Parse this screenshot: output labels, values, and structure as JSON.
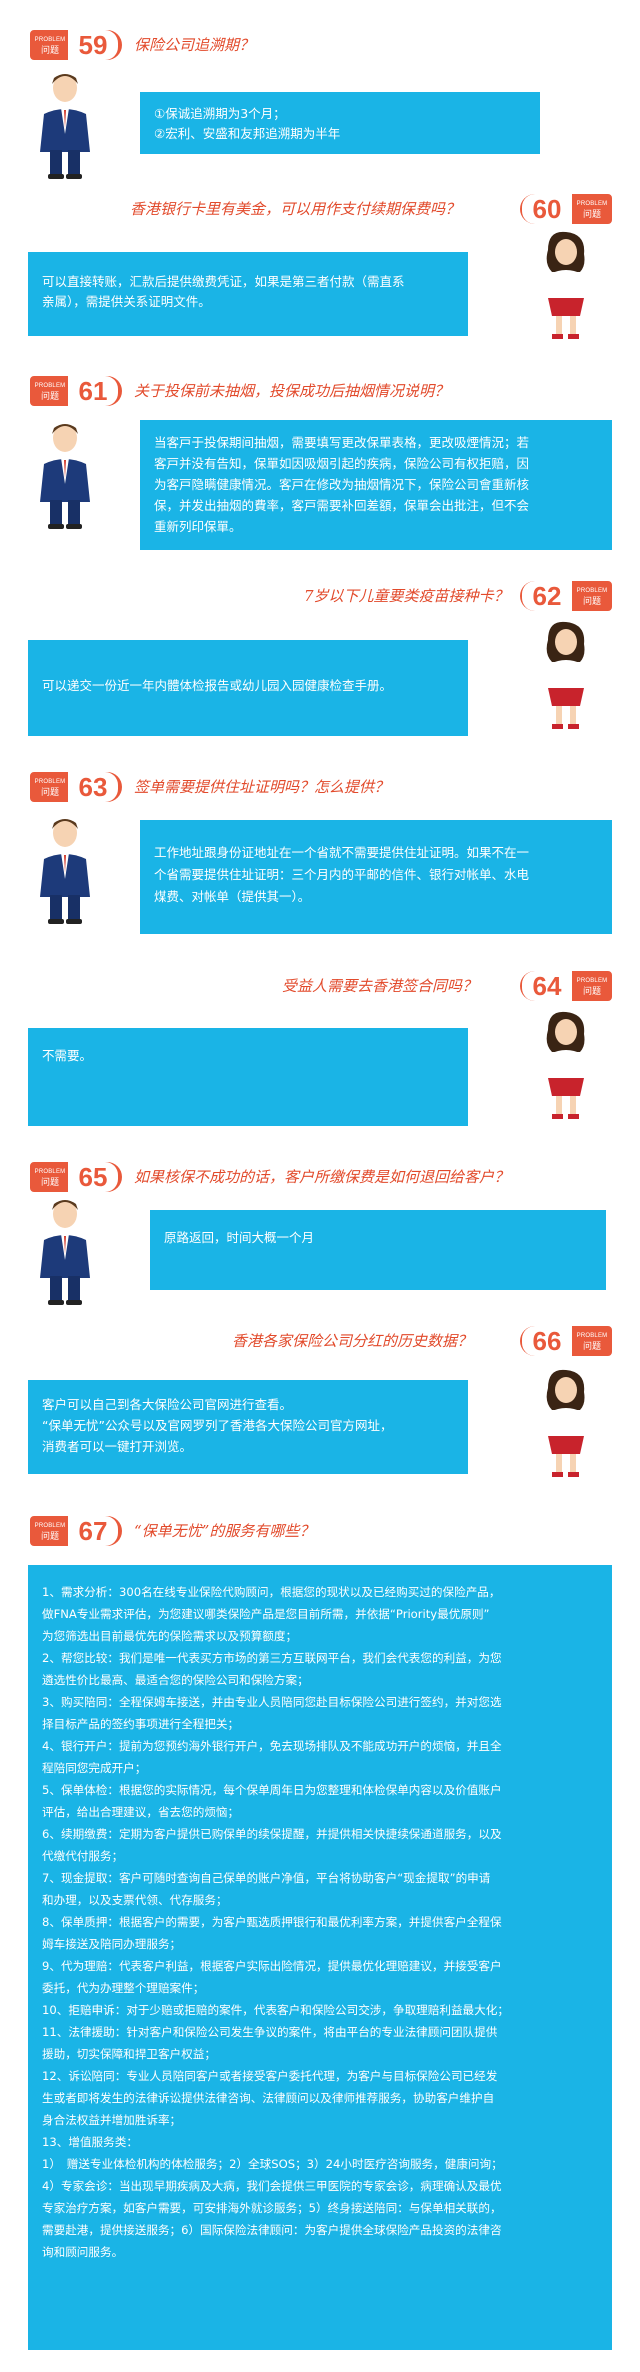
{
  "problem_label": "PROBLEM",
  "question_label": "问题",
  "colors": {
    "accent": "#e9593b",
    "bubble": "#1ab4e6",
    "question_text": "#e24a2b"
  },
  "items": [
    {
      "num": "59",
      "question": "保险公司追溯期？",
      "answer": [
        "①保诚追溯期为3个月；",
        "②宏利、安盛和友邦追溯期为半年"
      ]
    },
    {
      "num": "60",
      "question": "香港银行卡里有美金，可以用作支付续期保费吗？",
      "answer": [
        "可以直接转账，汇款后提供缴费凭证，如果是第三者付款（需直系",
        "亲属），需提供关系证明文件。"
      ]
    },
    {
      "num": "61",
      "question": "关于投保前未抽烟，投保成功后抽烟情况说明？",
      "answer": [
        "当客戸于投保期间抽烟，需要填写更改保單表格，更改吸煙情況；若",
        "客戸并没有告知，保單如因吸烟引起的疾病，保险公司有权拒赔，因",
        "为客戸隐瞒健康情况。客戸在修改为抽烟情况下，保险公司會重新核",
        "保，并发出抽烟的費率，客戸需要补回差額，保單会出批注，但不会",
        "重新列印保單。"
      ]
    },
    {
      "num": "62",
      "question": "7岁以下儿童要类疫苗接种卡？",
      "answer": [
        "可以递交一份近一年内體体检报告或幼儿园入园健康检查手册。"
      ]
    },
    {
      "num": "63",
      "question": "签单需要提供住址证明吗？怎么提供？",
      "answer": [
        "工作地址跟身份证地址在一个省就不需要提供住址证明。如果不在一",
        "个省需要提供住址证明：三个月内的平邮的信件、银行对帐单、水电",
        "煤费、对帐单（提供其一）。"
      ]
    },
    {
      "num": "64",
      "question": "受益人需要去香港签合同吗？",
      "answer": [
        "不需要。"
      ]
    },
    {
      "num": "65",
      "question": "如果核保不成功的话，客户所缴保费是如何退回给客户？",
      "answer": [
        "原路返回，时间大概一个月"
      ]
    },
    {
      "num": "66",
      "question": "香港各家保险公司分红的历史数据？",
      "answer": [
        "客户可以自己到各大保险公司官网进行查看。",
        "“保单无忧”公众号以及官网罗列了香港各大保险公司官方网址，",
        "消费者可以一键打开浏览。"
      ]
    },
    {
      "num": "67",
      "question": "“保单无忧”的服务有哪些？",
      "answer": []
    }
  ],
  "services": [
    "1、需求分析：300名在线专业保险代购顾问，根据您的现状以及已经购买过的保险产品，",
    "做FNA专业需求评估，为您建议哪类保险产品是您目前所需，并依据“Priority最优原则”",
    "为您筛选出目前最优先的保险需求以及预算额度；",
    "2、帮您比较：我们是唯一代表买方市场的第三方互联网平台，我们会代表您的利益，为您",
    "遴选性价比最高、最适合您的保险公司和保险方案；",
    "3、购买陪同：全程保姆车接送，并由专业人员陪同您赴目标保险公司进行签约，并对您选",
    "择目标产品的签约事项进行全程把关；",
    "4、银行开户：提前为您预约海外银行开户，免去现场排队及不能成功开户的烦恼，并且全",
    "程陪同您完成开户；",
    "5、保单体检：根据您的实际情况，每个保单周年日为您整理和体检保单内容以及价值账户",
    "评估，给出合理建议，省去您的烦恼；",
    "6、续期缴费：定期为客户提供已购保单的续保提醒，并提供相关快捷续保通道服务，以及",
    "代缴代付服务；",
    "7、现金提取：客户可随时查询自己保单的账户净值，平台将协助客户“现金提取”的申请",
    "和办理，以及支票代领、代存服务；",
    "8、保单质押：根据客户的需要，为客户甄选质押银行和最优利率方案，并提供客户全程保",
    "姆车接送及陪同办理服务；",
    "9、代为理赔：代表客户利益，根据客户实际出险情况，提供最优化理赔建议，并接受客户",
    "委托，代为办理整个理赔案件；",
    "10、拒赔申诉：对于少赔或拒赔的案件，代表客户和保险公司交涉，争取理赔利益最大化；",
    "11、法律援助：针对客户和保险公司发生争议的案件，将由平台的专业法律顾问团队提供",
    "援助，切实保障和捍卫客户权益；",
    "12、诉讼陪同：专业人员陪同客户或者接受客户委托代理，为客户与目标保险公司已经发",
    "生或者即将发生的法律诉讼提供法律咨询、法律顾问以及律师推荐服务，协助客户维护自",
    "身合法权益并增加胜诉率；",
    "13、增值服务类：",
    "1）　赠送专业体检机构的体检服务；2）全球SOS；3）24小时医疗咨询服务，健康问询；",
    "4）专家会诊：当出现早期疾病及大病，我们会提供三甲医院的专家会诊，病理确认及最优",
    "专家治疗方案，如客户需要，可安排海外就诊服务；5）终身接送陪同：与保单相关联的，",
    "需要赴港，提供接送服务；6）国际保险法律顾问：为客户提供全球保险产品投资的法律咨",
    "询和顾问服务。"
  ]
}
